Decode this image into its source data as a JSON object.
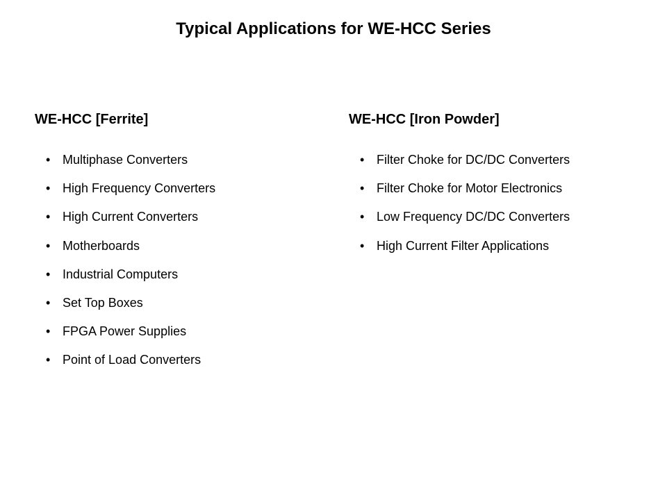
{
  "title": "Typical Applications for WE-HCC Series",
  "columns": {
    "left": {
      "heading": "WE-HCC [Ferrite]",
      "items": [
        "Multiphase Converters",
        "High Frequency Converters",
        "High Current Converters",
        "Motherboards",
        "Industrial Computers",
        "Set Top Boxes",
        "FPGA Power Supplies",
        "Point of Load Converters"
      ]
    },
    "right": {
      "heading": "WE-HCC [Iron Powder]",
      "items": [
        "Filter Choke for DC/DC Converters",
        "Filter Choke for Motor Electronics",
        "Low Frequency DC/DC Converters",
        "High Current Filter Applications"
      ]
    }
  },
  "styling": {
    "background_color": "#ffffff",
    "text_color": "#000000",
    "title_fontsize": 24,
    "subtitle_fontsize": 20,
    "body_fontsize": 18,
    "font_family": "Verdana"
  }
}
